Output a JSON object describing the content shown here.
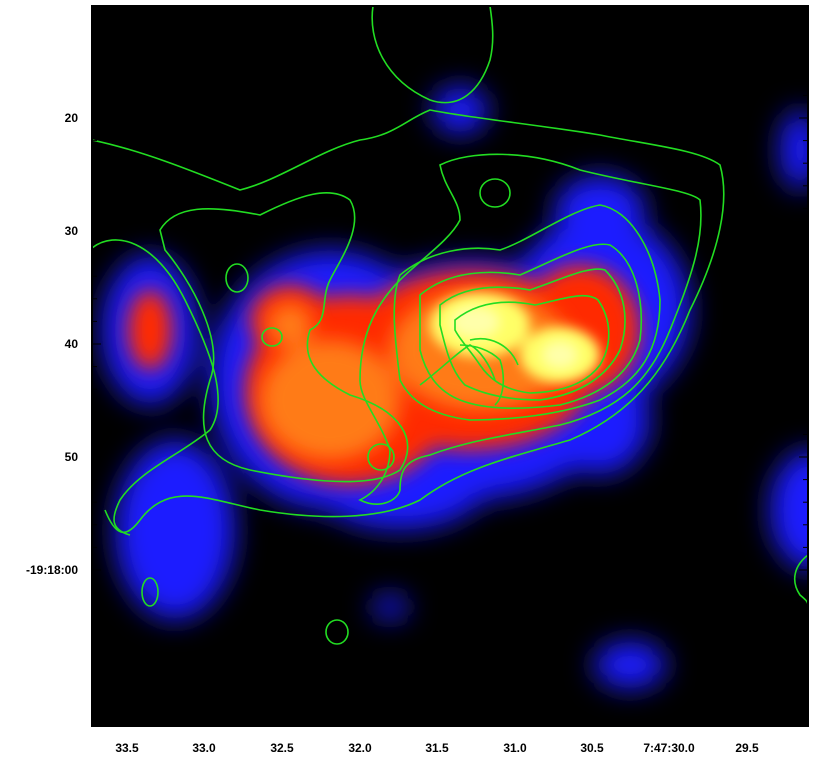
{
  "image": {
    "description_colors": {
      "background": "#000000",
      "low_emission": "#1a1aff",
      "mid_emission": "#ff2a00",
      "high_emission": "#ffff66",
      "contours": "#22dd22",
      "frame": "#000000"
    }
  },
  "axes": {
    "y_tick_labels": [
      "20",
      "30",
      "40",
      "50",
      "-19:18:00"
    ],
    "x_tick_labels": [
      "33.5",
      "33.0",
      "32.5",
      "32.0",
      "31.5",
      "31.0",
      "30.5",
      "7:47:30.0",
      "29.5"
    ]
  }
}
